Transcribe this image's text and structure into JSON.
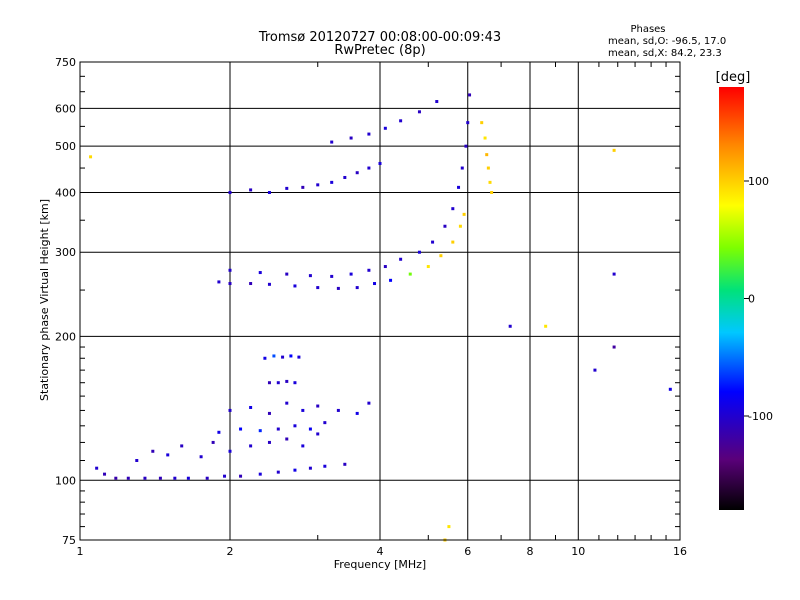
{
  "chart_data": {
    "type": "scatter",
    "title": "Tromsø 20120727 00:08:00-00:09:43",
    "subtitle": "RwPretec (8p)",
    "xlabel": "Frequency [MHz]",
    "ylabel": "Stationary phase Virtual Height [km]",
    "x_scale": "log",
    "y_scale": "log",
    "xlim": [
      1,
      16
    ],
    "ylim": [
      75,
      750
    ],
    "grid": true,
    "x_ticks": [
      1,
      2,
      4,
      6,
      8,
      10,
      16
    ],
    "x_tick_labels": [
      "1",
      "2",
      "4",
      "6",
      "8",
      "10",
      "16"
    ],
    "y_ticks": [
      75,
      100,
      200,
      300,
      400,
      500,
      600,
      750
    ],
    "y_tick_labels": [
      "75",
      "100",
      "200",
      "300",
      "400",
      "500",
      "600",
      "750"
    ],
    "stats": {
      "title": "Phases",
      "line1": "mean, sd,O: -96.5, 17.0",
      "line2": "mean, sd,X:  84.2, 23.3"
    },
    "colorbar": {
      "label": "[deg]",
      "range": [
        -180,
        180
      ],
      "ticks": [
        100,
        0,
        -100
      ],
      "tick_labels": [
        "100",
        "0",
        "-100"
      ]
    },
    "series": [
      {
        "values": [
          [
            1.08,
            106,
            -100
          ],
          [
            1.12,
            103,
            -110
          ],
          [
            1.18,
            101,
            -115
          ],
          [
            1.25,
            101,
            -110
          ],
          [
            1.35,
            101,
            -105
          ],
          [
            1.45,
            101,
            -110
          ],
          [
            1.55,
            101,
            -100
          ],
          [
            1.65,
            101,
            -95
          ],
          [
            1.8,
            101,
            -105
          ],
          [
            1.95,
            102,
            -100
          ],
          [
            2.1,
            102,
            -110
          ],
          [
            2.3,
            103,
            -95
          ],
          [
            2.5,
            104,
            -100
          ],
          [
            2.7,
            105,
            -90
          ],
          [
            2.9,
            106,
            -100
          ],
          [
            3.1,
            107,
            -95
          ],
          [
            3.4,
            108,
            -105
          ]
        ]
      },
      {
        "values": [
          [
            1.3,
            110,
            -100
          ],
          [
            1.4,
            115,
            -110
          ],
          [
            1.5,
            113,
            -95
          ],
          [
            1.6,
            118,
            -105
          ],
          [
            1.75,
            112,
            -100
          ],
          [
            1.85,
            120,
            -110
          ],
          [
            2.0,
            115,
            -95
          ],
          [
            2.2,
            118,
            -100
          ],
          [
            2.4,
            120,
            -105
          ],
          [
            2.6,
            122,
            -110
          ],
          [
            2.8,
            118,
            -95
          ],
          [
            3.0,
            125,
            -100
          ]
        ]
      },
      {
        "values": [
          [
            1.9,
            126,
            -90
          ],
          [
            2.1,
            128,
            -80
          ],
          [
            2.3,
            127,
            -70
          ],
          [
            2.5,
            128,
            -100
          ],
          [
            2.7,
            130,
            -95
          ],
          [
            2.9,
            128,
            -85
          ],
          [
            3.1,
            132,
            -100
          ]
        ]
      },
      {
        "values": [
          [
            2.0,
            140,
            -100
          ],
          [
            2.2,
            142,
            -90
          ],
          [
            2.4,
            138,
            -110
          ],
          [
            2.6,
            145,
            -100
          ],
          [
            2.8,
            140,
            -95
          ],
          [
            3.0,
            143,
            -105
          ],
          [
            3.3,
            140,
            -100
          ],
          [
            3.6,
            138,
            -90
          ],
          [
            3.8,
            145,
            -100
          ]
        ]
      },
      {
        "values": [
          [
            2.4,
            160,
            -110
          ],
          [
            2.5,
            160,
            -100
          ],
          [
            2.6,
            161,
            -105
          ],
          [
            2.7,
            160,
            -95
          ]
        ]
      },
      {
        "values": [
          [
            2.35,
            180,
            -90
          ],
          [
            2.45,
            182,
            -60
          ],
          [
            2.55,
            181,
            -100
          ],
          [
            2.65,
            182,
            -80
          ],
          [
            2.75,
            181,
            -95
          ]
        ]
      },
      {
        "values": [
          [
            1.9,
            260,
            -100
          ],
          [
            2.0,
            258,
            -105
          ],
          [
            2.2,
            258,
            -110
          ],
          [
            2.4,
            257,
            -100
          ],
          [
            2.7,
            255,
            -95
          ],
          [
            3.0,
            253,
            -100
          ],
          [
            3.3,
            252,
            -105
          ],
          [
            3.6,
            253,
            -100
          ],
          [
            3.9,
            258,
            -90
          ],
          [
            4.2,
            262,
            -80
          ],
          [
            4.6,
            270,
            40
          ],
          [
            5.0,
            280,
            90
          ],
          [
            5.3,
            295,
            100
          ],
          [
            5.6,
            315,
            100
          ],
          [
            5.8,
            340,
            95
          ],
          [
            5.9,
            360,
            100
          ]
        ]
      },
      {
        "values": [
          [
            2.0,
            275,
            -100
          ],
          [
            2.3,
            272,
            -95
          ],
          [
            2.6,
            270,
            -105
          ],
          [
            2.9,
            268,
            -100
          ],
          [
            3.2,
            267,
            -100
          ],
          [
            3.5,
            270,
            -95
          ],
          [
            3.8,
            275,
            -100
          ],
          [
            4.1,
            280,
            -105
          ],
          [
            4.4,
            290,
            -100
          ],
          [
            4.8,
            300,
            -95
          ],
          [
            5.1,
            315,
            -100
          ],
          [
            5.4,
            340,
            -105
          ],
          [
            5.6,
            370,
            -100
          ],
          [
            5.75,
            410,
            -95
          ],
          [
            5.85,
            450,
            -100
          ],
          [
            5.95,
            500,
            -105
          ],
          [
            6.0,
            560,
            -100
          ],
          [
            6.05,
            640,
            -110
          ]
        ]
      },
      {
        "values": [
          [
            2.0,
            400,
            -100
          ],
          [
            2.2,
            405,
            -105
          ],
          [
            2.4,
            400,
            -95
          ],
          [
            2.6,
            408,
            -100
          ],
          [
            2.8,
            410,
            -110
          ],
          [
            3.0,
            415,
            -100
          ],
          [
            3.2,
            420,
            -95
          ],
          [
            3.4,
            430,
            -100
          ],
          [
            3.6,
            440,
            -105
          ],
          [
            3.8,
            450,
            -100
          ],
          [
            4.0,
            460,
            -95
          ]
        ]
      },
      {
        "values": [
          [
            3.2,
            510,
            -100
          ],
          [
            3.5,
            520,
            -105
          ],
          [
            3.8,
            530,
            -100
          ],
          [
            4.1,
            545,
            -95
          ],
          [
            4.4,
            565,
            -100
          ],
          [
            4.8,
            590,
            -105
          ],
          [
            5.2,
            620,
            -100
          ]
        ]
      },
      {
        "values": [
          [
            6.4,
            560,
            100
          ],
          [
            6.5,
            520,
            90
          ],
          [
            6.55,
            480,
            110
          ],
          [
            6.6,
            450,
            100
          ],
          [
            6.65,
            420,
            95
          ],
          [
            6.7,
            400,
            100
          ]
        ]
      },
      {
        "values": [
          [
            1.05,
            475,
            95
          ],
          [
            11.8,
            490,
            100
          ],
          [
            11.8,
            270,
            -100
          ],
          [
            11.8,
            190,
            -120
          ],
          [
            10.8,
            170,
            -100
          ],
          [
            7.3,
            210,
            -100
          ],
          [
            8.6,
            210,
            90
          ],
          [
            15.3,
            155,
            -90
          ],
          [
            5.5,
            80,
            90
          ],
          [
            5.4,
            75,
            100
          ]
        ]
      }
    ]
  }
}
